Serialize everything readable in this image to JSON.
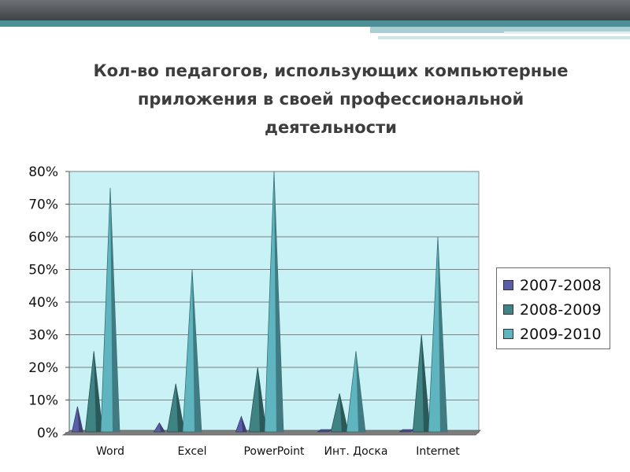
{
  "header": {
    "title": "Кол-во педагогов, использующих компьютерные\nприложения в своей  профессиональной\nдеятельности"
  },
  "chart_data": {
    "type": "bar",
    "style": "3d-cone",
    "categories": [
      "Word",
      "Excel",
      "PowerPoint",
      "Инт. Доска",
      "Internet"
    ],
    "series": [
      {
        "name": "2007-2008",
        "color": "#5a5ea8",
        "values": [
          8,
          3,
          5,
          0,
          0
        ]
      },
      {
        "name": "2008-2009",
        "color": "#3f8384",
        "values": [
          25,
          15,
          20,
          12,
          30
        ]
      },
      {
        "name": "2009-2010",
        "color": "#5fb5bf",
        "values": [
          75,
          50,
          80,
          25,
          60
        ]
      }
    ],
    "y_ticks": [
      "0%",
      "10%",
      "20%",
      "30%",
      "40%",
      "50%",
      "60%",
      "70%",
      "80%"
    ],
    "ylim": [
      0,
      80
    ],
    "ylabel": "",
    "xlabel": "",
    "grid": true,
    "legend_position": "right",
    "plot_background": "#c9f2f7"
  }
}
